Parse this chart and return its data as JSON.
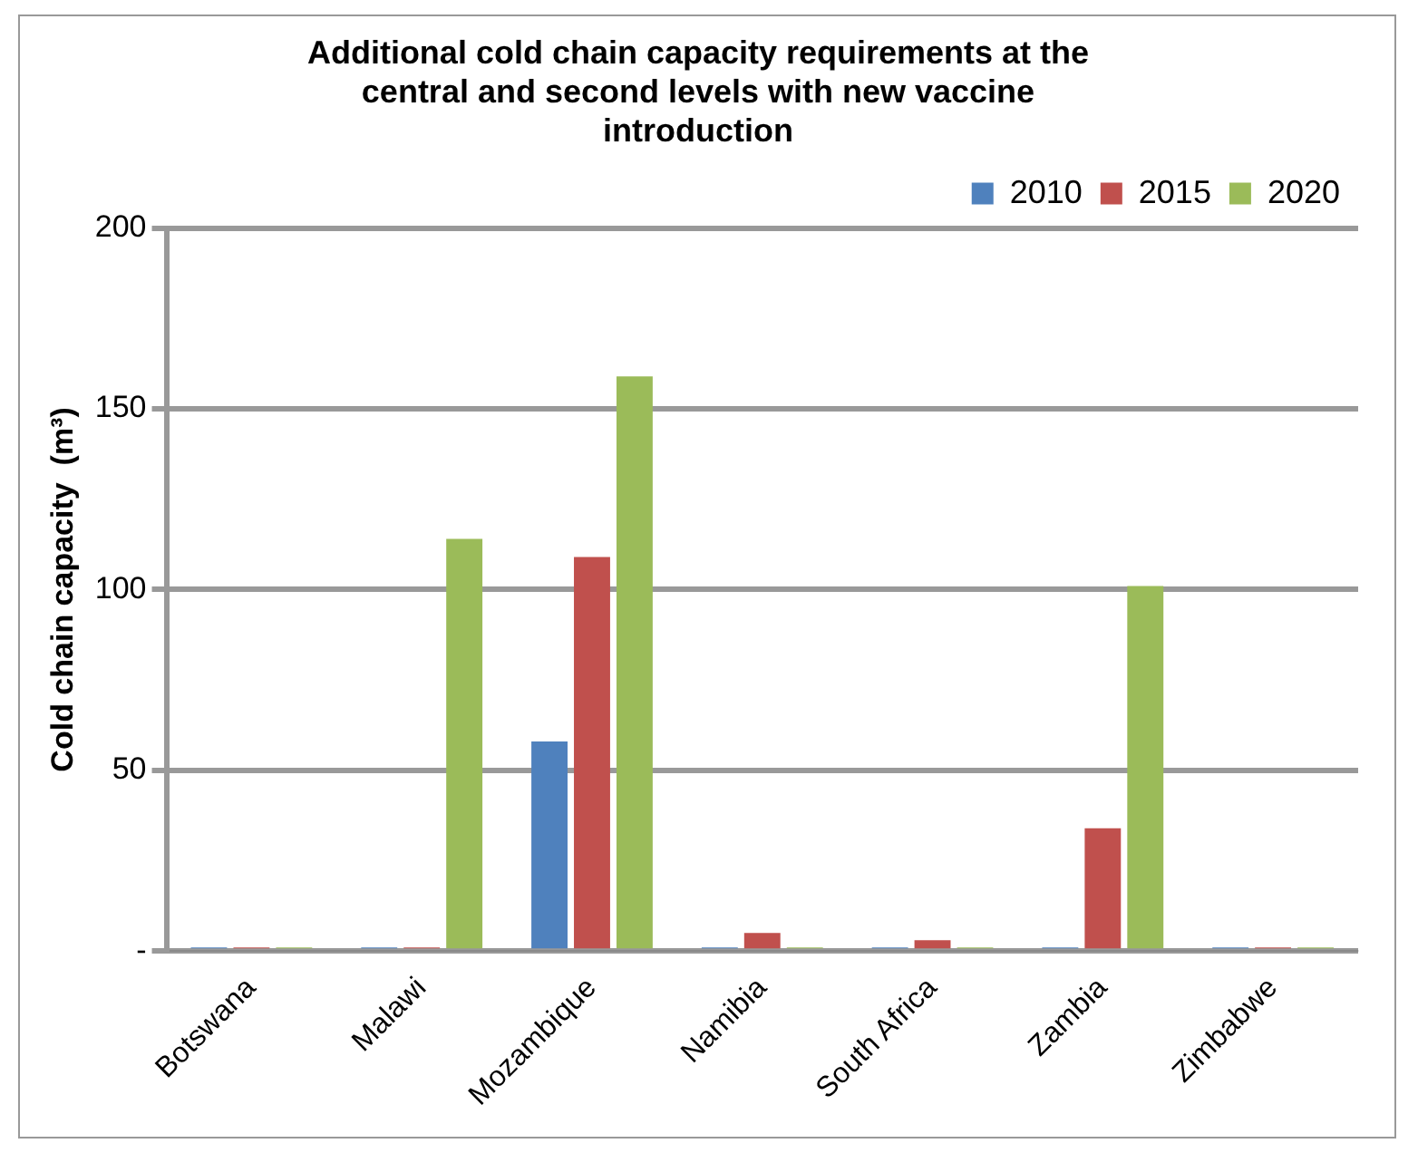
{
  "chart_data": {
    "type": "bar",
    "title": "Additional cold chain capacity requirements at the central and second levels with new vaccine introduction",
    "ylabel": "Cold chain capacity  (m³)",
    "categories": [
      "Botswana",
      "Malawi",
      "Mozambique",
      "Namibia",
      "South Africa",
      "Zambia",
      "Zimbabwe"
    ],
    "series": [
      {
        "name": "2010",
        "color": "#4f81bd",
        "values": [
          1,
          1,
          58,
          1,
          1,
          1,
          1
        ]
      },
      {
        "name": "2015",
        "color": "#c0504d",
        "values": [
          1,
          1,
          109,
          5,
          3,
          34,
          1
        ]
      },
      {
        "name": "2020",
        "color": "#9bbb59",
        "values": [
          1,
          114,
          159,
          1,
          1,
          101,
          1
        ]
      }
    ],
    "ylim": [
      0,
      200
    ],
    "yticks": [
      {
        "value": 0,
        "label": "-"
      },
      50,
      100,
      150,
      200
    ],
    "grid": "y",
    "legend": "top right"
  }
}
